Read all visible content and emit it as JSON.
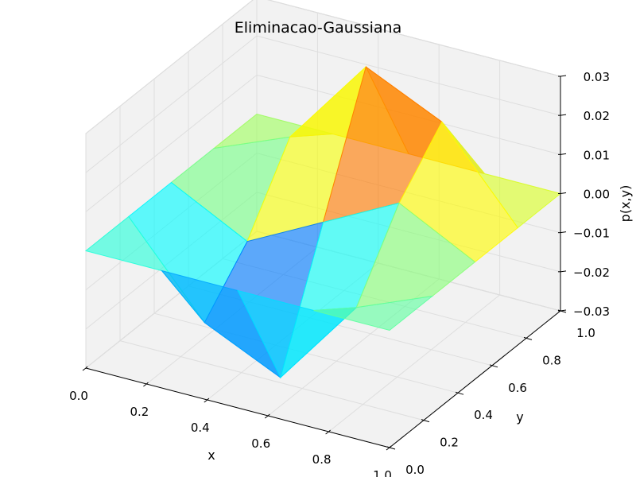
{
  "chart_data": {
    "type": "surface",
    "title": "Eliminacao-Gaussiana",
    "xlabel": "x",
    "ylabel": "y",
    "zlabel": "p(x,y)",
    "xlim": [
      0,
      1
    ],
    "ylim": [
      0,
      1
    ],
    "zlim": [
      -0.03,
      0.03
    ],
    "x_ticks": [
      "0.0",
      "0.2",
      "0.4",
      "0.6",
      "0.8",
      "1.0"
    ],
    "y_ticks": [
      "0.0",
      "0.2",
      "0.4",
      "0.6",
      "0.8",
      "1.0"
    ],
    "z_ticks": [
      "−0.03",
      "−0.02",
      "−0.01",
      "0.00",
      "0.01",
      "0.02",
      "0.03"
    ],
    "grid": true,
    "colormap": "jet",
    "x": [
      0,
      0.25,
      0.5,
      0.75,
      1.0
    ],
    "y": [
      0,
      0.25,
      0.5,
      0.75,
      1.0
    ],
    "z_rows_by_x": [
      [
        0,
        0,
        0,
        0,
        0
      ],
      [
        0,
        -0.022,
        -0.01,
        0.008,
        0
      ],
      [
        0,
        -0.031,
        0,
        0.031,
        0
      ],
      [
        0,
        -0.008,
        0.01,
        0.022,
        0
      ],
      [
        0,
        0,
        0,
        0,
        0
      ]
    ]
  },
  "colors": {
    "pane_face": "#f2f2f2",
    "pane_edge": "#cccccc",
    "grid": "#dedede",
    "axis": "#000000"
  }
}
